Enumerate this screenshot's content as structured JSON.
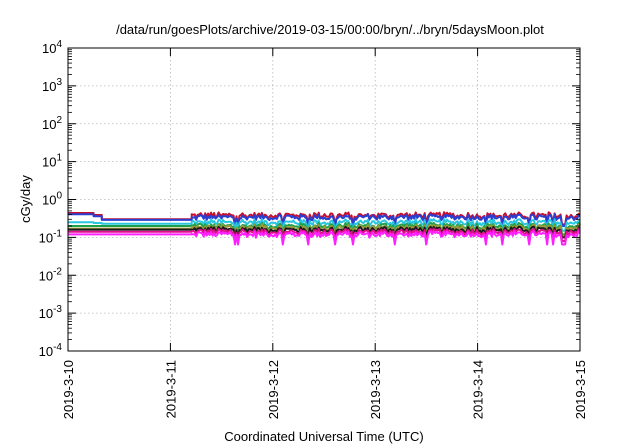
{
  "chart_data": {
    "type": "line",
    "title": "/data/run/goesPlots/archive/2019-03-15/00:00/bryn/../bryn/5daysMoon.plot",
    "xlabel": "Coordinated Universal Time (UTC)",
    "ylabel": "cGy/day",
    "yscale": "log",
    "ylim": [
      0.0001,
      10000
    ],
    "y_ticks": [
      {
        "value": 0.0001,
        "base": "10",
        "exp": "-4"
      },
      {
        "value": 0.001,
        "base": "10",
        "exp": "-3"
      },
      {
        "value": 0.01,
        "base": "10",
        "exp": "-2"
      },
      {
        "value": 0.1,
        "base": "10",
        "exp": "-1"
      },
      {
        "value": 1,
        "base": "10",
        "exp": "0"
      },
      {
        "value": 10,
        "base": "10",
        "exp": "1"
      },
      {
        "value": 100,
        "base": "10",
        "exp": "2"
      },
      {
        "value": 1000,
        "base": "10",
        "exp": "3"
      },
      {
        "value": 10000,
        "base": "10",
        "exp": "4"
      }
    ],
    "xlim": [
      "2019-3-10",
      "2019-3-15"
    ],
    "x_ticks": [
      "2019-3-10",
      "2019-3-11",
      "2019-3-12",
      "2019-3-13",
      "2019-3-14",
      "2019-3-15"
    ],
    "grid": true,
    "gap_x": [
      "2019-3-10 00:00",
      "2019-3-11 05:00"
    ],
    "series": [
      {
        "color": "#c8102e",
        "plateau": [
          0.44,
          0.39,
          0.3
        ],
        "level": 0.38,
        "dip_to": 0.22
      },
      {
        "color": "#2a3fd1",
        "plateau": [
          0.41,
          0.36,
          0.29
        ],
        "level": 0.34,
        "dip_to": 0.2
      },
      {
        "color": "#29c6e0",
        "plateau": [
          0.25,
          0.24,
          0.23
        ],
        "level": 0.25,
        "dip_to": 0.15
      },
      {
        "color": "#1ea04a",
        "plateau": [
          0.2,
          0.2,
          0.2
        ],
        "level": 0.2,
        "dip_to": 0.12
      },
      {
        "color": "#9a9a3a",
        "plateau": [
          0.17,
          0.17,
          0.17
        ],
        "level": 0.18,
        "dip_to": 0.11
      },
      {
        "color": "#1a1a1a",
        "plateau": [
          0.16,
          0.16,
          0.16
        ],
        "level": 0.16,
        "dip_to": 0.1
      },
      {
        "color": "#e0108c",
        "plateau": [
          0.14,
          0.14,
          0.14
        ],
        "level": 0.14,
        "dip_to": 0.08
      },
      {
        "color": "#ff20ff",
        "plateau": [
          0.12,
          0.12,
          0.12
        ],
        "level": 0.12,
        "dip_to": 0.065
      }
    ]
  }
}
